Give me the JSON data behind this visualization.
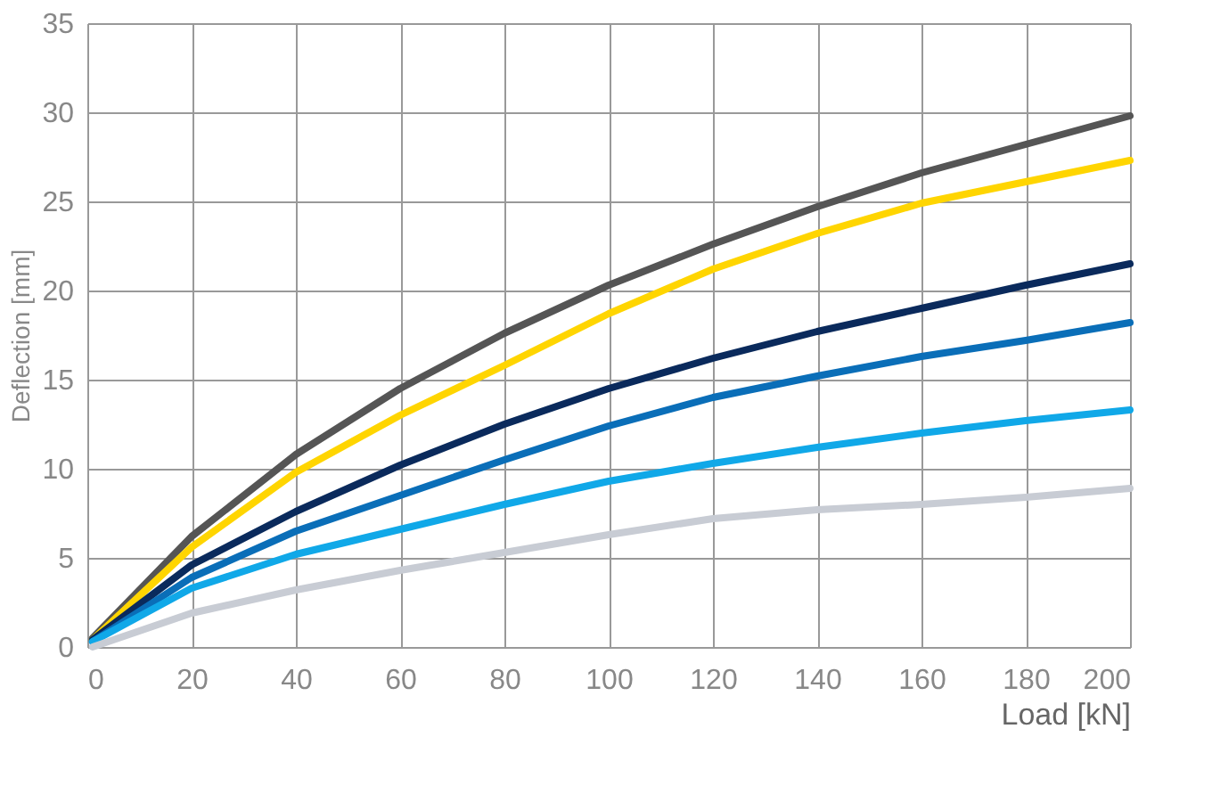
{
  "chart_data": {
    "type": "line",
    "xlabel": "Load [kN]",
    "ylabel": "Deflection [mm]",
    "x": [
      1,
      20,
      40,
      60,
      80,
      100,
      120,
      140,
      160,
      180,
      200
    ],
    "xlim": [
      0,
      200
    ],
    "xticks": [
      0,
      20,
      40,
      60,
      80,
      100,
      120,
      140,
      160,
      180,
      200
    ],
    "ylim": [
      0,
      35
    ],
    "yticks": [
      0,
      5,
      10,
      15,
      20,
      25,
      30,
      35
    ],
    "grid": true,
    "legend": false,
    "marker": "none",
    "line_style": "solid",
    "series": [
      {
        "color": "#555555",
        "values": [
          0.5,
          6.2,
          10.8,
          14.5,
          17.6,
          20.3,
          22.6,
          24.7,
          26.6,
          28.2,
          29.8
        ]
      },
      {
        "color": "#ffd500",
        "values": [
          0.4,
          5.6,
          9.8,
          13,
          15.8,
          18.7,
          21.2,
          23.2,
          24.9,
          26.1,
          27.3
        ]
      },
      {
        "color": "#0a2a5c",
        "values": [
          0.4,
          4.6,
          7.6,
          10.2,
          12.5,
          14.5,
          16.2,
          17.7,
          19,
          20.3,
          21.5
        ]
      },
      {
        "color": "#0a6eb8",
        "values": [
          0.3,
          3.9,
          6.5,
          8.5,
          10.5,
          12.4,
          14,
          15.2,
          16.3,
          17.2,
          18.2
        ]
      },
      {
        "color": "#10a8e8",
        "values": [
          0.3,
          3.3,
          5.2,
          6.6,
          8,
          9.3,
          10.3,
          11.2,
          12,
          12.7,
          13.3
        ]
      },
      {
        "color": "#c8ccd4",
        "values": [
          0,
          1.9,
          3.2,
          4.3,
          5.3,
          6.3,
          7.2,
          7.7,
          8,
          8.4,
          8.9
        ]
      }
    ]
  }
}
